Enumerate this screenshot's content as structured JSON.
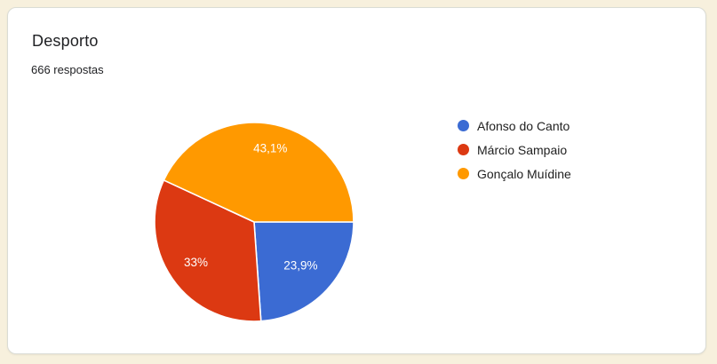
{
  "card": {
    "title": "Desporto",
    "subtitle": "666 respostas"
  },
  "chart_data": {
    "type": "pie",
    "title": "Desporto",
    "subtitle": "666 respostas",
    "categories": [
      "Afonso do Canto",
      "Márcio Sampaio",
      "Gonçalo Muídine"
    ],
    "values": [
      23.9,
      33,
      43.1
    ],
    "slice_labels": [
      "23,9%",
      "33%",
      "43,1%"
    ],
    "colors": [
      "#3B6BD3",
      "#DC3912",
      "#FF9900"
    ],
    "legend_position": "right",
    "start_angle_deg": 90,
    "direction": "clockwise",
    "label_radius_frac": [
      0.64,
      0.71,
      0.76
    ],
    "label_color": "#FFFFFF",
    "label_font_size": 13.5,
    "slice_stroke_color": "#FFFFFF"
  },
  "theme": {
    "page_background": "#F7F0DD",
    "card_background": "#FFFFFF",
    "card_border": "#DADCD5",
    "text_color": "#202124"
  }
}
